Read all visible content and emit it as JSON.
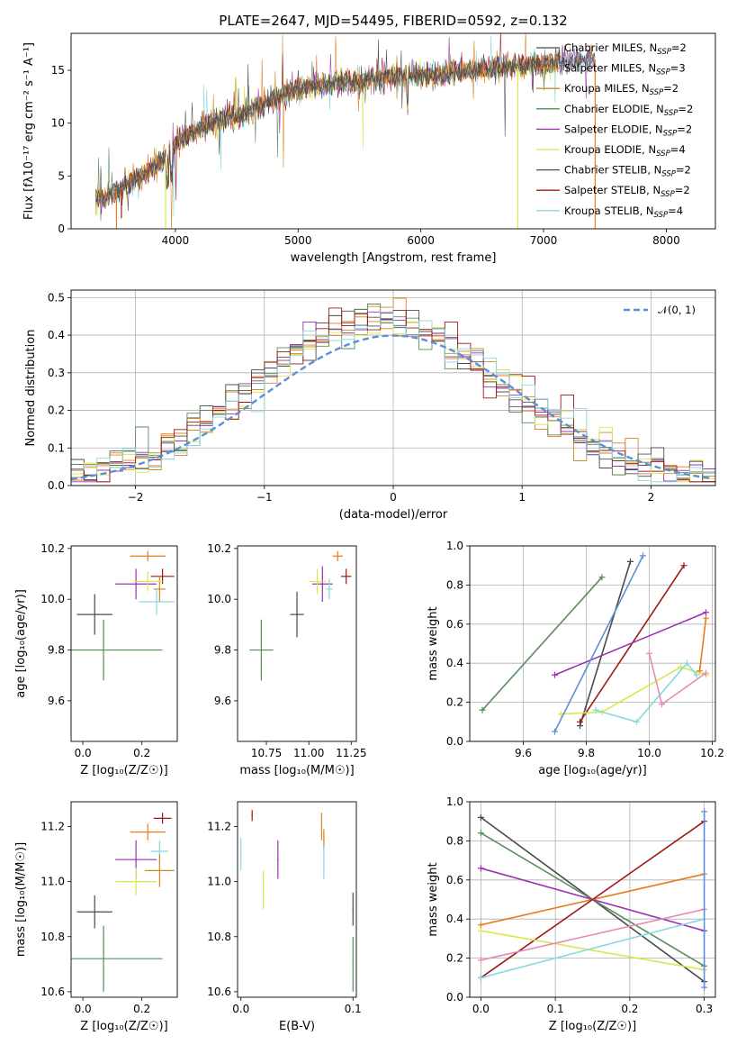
{
  "colors": [
    "#4a4a4a",
    "#e87b1e",
    "#d08a2a",
    "#5a8c5a",
    "#9b30b0",
    "#d8e84a",
    "#505050",
    "#a01818",
    "#88d8e0"
  ],
  "chart_data": [
    {
      "type": "line",
      "title": "PLATE=2647, MJD=54495, FIBERID=0592, z=0.132",
      "xlabel": "wavelength [Angstrom, rest frame]",
      "ylabel": "Flux [fλ10⁻¹⁷ erg cm⁻² s⁻¹ A⁻¹]",
      "xlim": [
        3150,
        8400
      ],
      "ylim": [
        0,
        18.5
      ],
      "xticks": [
        "4000",
        "5000",
        "6000",
        "7000",
        "8000"
      ],
      "yticks": [
        "0",
        "5",
        "10",
        "15"
      ],
      "legend_position": "top-right",
      "series": [
        {
          "name": "Chabrier MILES, N_SSP=2",
          "label_prefix": "Chabrier MILES, N",
          "label_sub": "SSP",
          "label_suffix": "=2"
        },
        {
          "name": "Salpeter MILES, N_SSP=3",
          "label_prefix": "Salpeter MILES, N",
          "label_sub": "SSP",
          "label_suffix": "=3"
        },
        {
          "name": "Kroupa MILES, N_SSP=2",
          "label_prefix": "Kroupa MILES, N",
          "label_sub": "SSP",
          "label_suffix": "=2"
        },
        {
          "name": "Chabrier ELODIE, N_SSP=2",
          "label_prefix": "Chabrier ELODIE, N",
          "label_sub": "SSP",
          "label_suffix": "=2"
        },
        {
          "name": "Salpeter ELODIE, N_SSP=2",
          "label_prefix": "Salpeter ELODIE, N",
          "label_sub": "SSP",
          "label_suffix": "=2"
        },
        {
          "name": "Kroupa ELODIE, N_SSP=4",
          "label_prefix": "Kroupa ELODIE, N",
          "label_sub": "SSP",
          "label_suffix": "=4"
        },
        {
          "name": "Chabrier STELIB, N_SSP=2",
          "label_prefix": "Chabrier STELIB, N",
          "label_sub": "SSP",
          "label_suffix": "=2"
        },
        {
          "name": "Salpeter STELIB, N_SSP=2",
          "label_prefix": "Salpeter STELIB, N",
          "label_sub": "SSP",
          "label_suffix": "=2"
        },
        {
          "name": "Kroupa STELIB, N_SSP=4",
          "label_prefix": "Kroupa STELIB, N",
          "label_sub": "SSP",
          "label_suffix": "=4"
        }
      ],
      "continuum": {
        "x": [
          3350,
          3500,
          3700,
          3900,
          4000,
          4200,
          4400,
          4600,
          4800,
          5000,
          5200,
          5400,
          5600,
          5800,
          6000,
          6200,
          6400,
          6600,
          6800,
          7000,
          7200,
          7400,
          7600
        ],
        "y": [
          2.8,
          3.3,
          4.8,
          6.5,
          8.0,
          9.5,
          10.4,
          11.0,
          12.3,
          13.3,
          13.6,
          14.0,
          14.1,
          14.4,
          14.5,
          14.7,
          15.0,
          15.2,
          15.4,
          15.6,
          15.9,
          16.0,
          16.3
        ]
      }
    },
    {
      "type": "line",
      "xlabel": "(data-model)/error",
      "ylabel": "Normed distribution",
      "xlim": [
        -2.5,
        2.5
      ],
      "ylim": [
        0,
        0.52
      ],
      "xticks": [
        "−2",
        "−1",
        "0",
        "1",
        "2"
      ],
      "yticks": [
        "0.0",
        "0.1",
        "0.2",
        "0.3",
        "0.4",
        "0.5"
      ],
      "grid": true,
      "legend_position": "top-right",
      "reference": {
        "name": "N(0,1)",
        "label": "𝒩(0, 1)",
        "color": "#5b8fd9",
        "style": "dashed"
      },
      "bin_width": 0.1,
      "bin_start": -2.5
    },
    {
      "type": "scatter",
      "xlabel": "Z [log₁₀(Z/Z☉)]",
      "ylabel": "age  [log₁₀(age/yr)]",
      "xlim": [
        -0.04,
        0.32
      ],
      "ylim": [
        9.44,
        10.21
      ],
      "xticks": [
        "0.0",
        "0.2"
      ],
      "yticks": [
        "9.6",
        "9.8",
        "10.0",
        "10.2"
      ],
      "errorbars": [
        {
          "x": 0.04,
          "y": 9.94,
          "xerr": 0.06,
          "yerr": 0.08,
          "c": 0
        },
        {
          "x": 0.07,
          "y": 9.8,
          "xerr": 0.2,
          "yerr": 0.12,
          "c": 3
        },
        {
          "x": 0.22,
          "y": 10.17,
          "xerr": 0.06,
          "yerr": 0.02,
          "c": 1
        },
        {
          "x": 0.27,
          "y": 10.09,
          "xerr": 0.04,
          "yerr": 0.03,
          "c": 7
        },
        {
          "x": 0.18,
          "y": 10.06,
          "xerr": 0.07,
          "yerr": 0.06,
          "c": 4
        },
        {
          "x": 0.26,
          "y": 10.04,
          "xerr": 0.02,
          "yerr": 0.05,
          "c": 2
        },
        {
          "x": 0.25,
          "y": 9.99,
          "xerr": 0.06,
          "yerr": 0.05,
          "c": 8
        },
        {
          "x": 0.22,
          "y": 10.07,
          "xerr": 0.05,
          "yerr": 0.04,
          "c": 5
        }
      ]
    },
    {
      "type": "scatter",
      "xlabel": "mass [log₁₀(M/M☉)]",
      "xlim": [
        10.58,
        11.28
      ],
      "ylim": [
        9.44,
        10.21
      ],
      "xticks": [
        "10.75",
        "11.00",
        "11.25"
      ],
      "yticks": [
        "9.6",
        "9.8",
        "10.0",
        "10.2"
      ],
      "errorbars": [
        {
          "x": 10.93,
          "y": 9.94,
          "xerr": 0.04,
          "yerr": 0.09,
          "c": 0
        },
        {
          "x": 10.72,
          "y": 9.8,
          "xerr": 0.07,
          "yerr": 0.12,
          "c": 3
        },
        {
          "x": 11.17,
          "y": 10.17,
          "xerr": 0.03,
          "yerr": 0.02,
          "c": 1
        },
        {
          "x": 11.22,
          "y": 10.09,
          "xerr": 0.03,
          "yerr": 0.03,
          "c": 7
        },
        {
          "x": 11.08,
          "y": 10.06,
          "xerr": 0.06,
          "yerr": 0.07,
          "c": 4
        },
        {
          "x": 11.05,
          "y": 10.07,
          "xerr": 0.05,
          "yerr": 0.05,
          "c": 5
        },
        {
          "x": 11.12,
          "y": 10.04,
          "xerr": 0.02,
          "yerr": 0.04,
          "c": 8
        }
      ]
    },
    {
      "type": "line",
      "xlabel": "age  [log₁₀(age/yr)]",
      "ylabel": "mass weight",
      "xlim": [
        9.43,
        10.21
      ],
      "ylim": [
        0,
        1
      ],
      "xticks": [
        "9.6",
        "9.8",
        "10.0",
        "10.2"
      ],
      "yticks": [
        "0.0",
        "0.2",
        "0.4",
        "0.6",
        "0.8",
        "1.0"
      ],
      "grid": true,
      "series": [
        {
          "c": 3,
          "x": [
            9.47,
            9.85
          ],
          "y": [
            0.16,
            0.84
          ]
        },
        {
          "c": 0,
          "x": [
            9.78,
            9.94
          ],
          "y": [
            0.08,
            0.92
          ]
        },
        {
          "c": 1,
          "x": [
            10.18,
            10.16
          ],
          "y": [
            0.63,
            0.36
          ]
        },
        {
          "c": 7,
          "x": [
            9.78,
            10.11
          ],
          "y": [
            0.1,
            0.9
          ]
        },
        {
          "c": 4,
          "x": [
            9.7,
            10.18
          ],
          "y": [
            0.34,
            0.66
          ]
        },
        {
          "c": 5,
          "x": [
            9.72,
            9.85,
            10.1,
            10.18
          ],
          "y": [
            0.14,
            0.15,
            0.38,
            0.34
          ]
        },
        {
          "c": 8,
          "x": [
            9.83,
            9.96,
            10.12,
            10.15
          ],
          "y": [
            0.16,
            0.1,
            0.4,
            0.34
          ]
        },
        {
          "c": 2,
          "x": [
            9.7,
            9.98
          ],
          "y": [
            0.05,
            0.95
          ],
          "colorOverride": "#5b8fd9"
        },
        {
          "c": 2,
          "x": [
            10.0,
            10.04,
            10.18
          ],
          "y": [
            0.45,
            0.19,
            0.35
          ],
          "colorOverride": "#e88ab8"
        }
      ]
    },
    {
      "type": "scatter",
      "xlabel": "Z [log₁₀(Z/Z☉)]",
      "ylabel": "mass [log₁₀(M/M☉)]",
      "xlim": [
        -0.04,
        0.32
      ],
      "ylim": [
        10.58,
        11.29
      ],
      "xticks": [
        "0.0",
        "0.2"
      ],
      "yticks": [
        "10.6",
        "10.8",
        "11.0",
        "11.2"
      ],
      "errorbars": [
        {
          "x": 0.04,
          "y": 10.89,
          "xerr": 0.06,
          "yerr": 0.06,
          "c": 0
        },
        {
          "x": 0.07,
          "y": 10.72,
          "xerr": 0.2,
          "yerr": 0.12,
          "c": 3
        },
        {
          "x": 0.27,
          "y": 11.23,
          "xerr": 0.03,
          "yerr": 0.02,
          "c": 7
        },
        {
          "x": 0.22,
          "y": 11.18,
          "xerr": 0.06,
          "yerr": 0.03,
          "c": 1
        },
        {
          "x": 0.26,
          "y": 11.11,
          "xerr": 0.03,
          "yerr": 0.04,
          "c": 8
        },
        {
          "x": 0.26,
          "y": 11.04,
          "xerr": 0.05,
          "yerr": 0.06,
          "c": 2
        },
        {
          "x": 0.18,
          "y": 11.08,
          "xerr": 0.07,
          "yerr": 0.07,
          "c": 4
        },
        {
          "x": 0.18,
          "y": 11.0,
          "xerr": 0.07,
          "yerr": 0.05,
          "c": 5
        }
      ]
    },
    {
      "type": "scatter",
      "xlabel": "E(B-V)",
      "xlim": [
        -0.003,
        0.103
      ],
      "ylim": [
        10.58,
        11.29
      ],
      "xticks": [
        "0.0",
        "0.1"
      ],
      "yticks": [
        "10.6",
        "10.8",
        "11.0",
        "11.2"
      ],
      "errorbars": [
        {
          "x": 0.01,
          "y": 11.24,
          "yerr": 0.02,
          "c": 7
        },
        {
          "x": 0.033,
          "y": 11.08,
          "yerr": 0.07,
          "c": 4
        },
        {
          "x": 0.02,
          "y": 10.97,
          "yerr": 0.07,
          "c": 5
        },
        {
          "x": 0.072,
          "y": 11.2,
          "yerr": 0.05,
          "c": 2
        },
        {
          "x": 0.074,
          "y": 11.15,
          "yerr": 0.04,
          "c": 1
        },
        {
          "x": 0.074,
          "y": 11.07,
          "yerr": 0.06,
          "c": 8
        },
        {
          "x": 0.1,
          "y": 10.9,
          "yerr": 0.06,
          "c": 0
        },
        {
          "x": 0.1,
          "y": 10.7,
          "yerr": 0.1,
          "c": 3
        },
        {
          "x": 0.0,
          "y": 11.1,
          "yerr": 0.06,
          "c": 8
        }
      ]
    },
    {
      "type": "line",
      "xlabel": "Z [log₁₀(Z/Z☉)]",
      "ylabel": "mass weight",
      "xlim": [
        -0.015,
        0.315
      ],
      "ylim": [
        0,
        1
      ],
      "xticks": [
        "0.0",
        "0.1",
        "0.2",
        "0.3"
      ],
      "yticks": [
        "0.0",
        "0.2",
        "0.4",
        "0.6",
        "0.8",
        "1.0"
      ],
      "grid": true,
      "series": [
        {
          "c": 0,
          "x": [
            0.0,
            0.3
          ],
          "y": [
            0.92,
            0.08
          ]
        },
        {
          "c": 3,
          "x": [
            0.0,
            0.3
          ],
          "y": [
            0.84,
            0.16
          ]
        },
        {
          "c": 4,
          "x": [
            0.0,
            0.3
          ],
          "y": [
            0.66,
            0.34
          ]
        },
        {
          "c": 1,
          "x": [
            0.0,
            0.3
          ],
          "y": [
            0.37,
            0.63
          ]
        },
        {
          "c": 7,
          "x": [
            0.0,
            0.3
          ],
          "y": [
            0.1,
            0.9
          ]
        },
        {
          "c": 5,
          "x": [
            0.0,
            0.3
          ],
          "y": [
            0.34,
            0.14
          ]
        },
        {
          "c": 8,
          "x": [
            0.0,
            0.3
          ],
          "y": [
            0.1,
            0.4
          ]
        },
        {
          "c": 2,
          "x": [
            0.0,
            0.3
          ],
          "y": [
            0.19,
            0.45
          ],
          "colorOverride": "#e88ab8"
        },
        {
          "c": 2,
          "x": [
            0.3,
            0.3
          ],
          "y": [
            0.05,
            0.95
          ],
          "colorOverride": "#5b8fd9"
        }
      ]
    }
  ]
}
